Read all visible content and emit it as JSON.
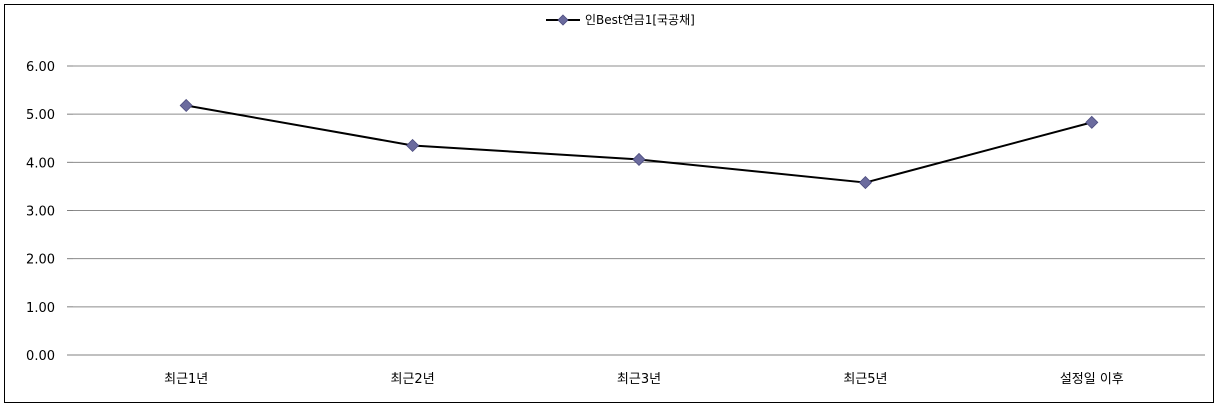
{
  "chart_data": {
    "type": "line",
    "categories": [
      "최근1년",
      "최근2년",
      "최근3년",
      "최근5년",
      "설정일 이후"
    ],
    "series": [
      {
        "name": "인Best연금1[국공채]",
        "values": [
          5.18,
          4.35,
          4.06,
          3.58,
          4.83
        ],
        "color": "#000000",
        "marker_color": "#6B6B9E",
        "marker": "diamond"
      }
    ],
    "ylim": [
      0,
      6
    ],
    "yticks": [
      "0.00",
      "1.00",
      "2.00",
      "3.00",
      "4.00",
      "5.00",
      "6.00"
    ],
    "grid": true,
    "legend_position": "top-center",
    "title": "",
    "xlabel": "",
    "ylabel": ""
  }
}
